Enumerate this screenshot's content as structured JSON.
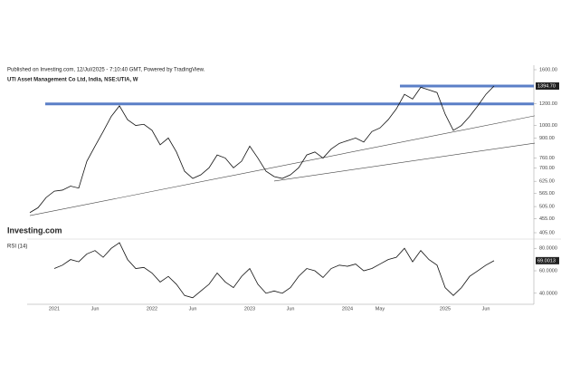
{
  "header": {
    "published": "Published on Investing.com, 12/Jul/2025 - 7:10:40 GMT, Powered by TradingView.",
    "symbol": "UTI Asset Management Co Ltd, India, NSE:UTIA, W"
  },
  "logo": "Investing.com",
  "chart_data": [
    {
      "type": "line",
      "log_scale": true,
      "categories": [
        null,
        null,
        null,
        "2021",
        null,
        null,
        null,
        null,
        "Jun",
        null,
        null,
        null,
        null,
        null,
        null,
        "2022",
        null,
        null,
        null,
        null,
        "Jun",
        null,
        null,
        null,
        null,
        null,
        null,
        "2023",
        null,
        null,
        null,
        null,
        "Jun",
        null,
        null,
        null,
        null,
        null,
        null,
        "2024",
        null,
        null,
        null,
        "May",
        null,
        null,
        null,
        null,
        null,
        null,
        null,
        "2025",
        null,
        null,
        null,
        null,
        "Jun",
        null
      ],
      "series": [
        {
          "color": "#111111",
          "values": [
            480,
            500,
            545,
            575,
            580,
            600,
            590,
            740,
            840,
            950,
            1080,
            1180,
            1050,
            1000,
            1010,
            960,
            850,
            900,
            800,
            680,
            640,
            660,
            700,
            780,
            760,
            700,
            740,
            840,
            760,
            680,
            650,
            640,
            660,
            700,
            780,
            800,
            760,
            820,
            860,
            880,
            900,
            870,
            950,
            980,
            1050,
            1150,
            1300,
            1250,
            1380,
            1350,
            1320,
            1100,
            960,
            1000,
            1080,
            1180,
            1300,
            1394.7
          ]
        }
      ],
      "last_value": {
        "value": 1394.7,
        "label": "1394.70"
      },
      "levels": [
        1394.7,
        1200
      ],
      "level_color": "#5b7fc7",
      "trendlines": [
        {
          "from": [
            0,
            468
          ],
          "to": [
            62,
            1085
          ]
        },
        {
          "from": [
            30,
            626
          ],
          "to": [
            62,
            862
          ]
        }
      ],
      "ylim": [
        405,
        1600
      ],
      "yticks": [
        {
          "value": 1600,
          "label": "1600.00"
        },
        {
          "value": 1200,
          "label": "1200.00"
        },
        {
          "value": 1000,
          "label": "1000.00"
        },
        {
          "value": 900,
          "label": "900.00"
        },
        {
          "value": 760,
          "label": "760.00"
        },
        {
          "value": 700,
          "label": "700.00"
        },
        {
          "value": 625,
          "label": "625.00"
        },
        {
          "value": 565,
          "label": "565.00"
        },
        {
          "value": 505,
          "label": "505.00"
        },
        {
          "value": 455,
          "label": "455.00"
        },
        {
          "value": 405,
          "label": "405.00"
        }
      ]
    },
    {
      "type": "line",
      "title": "RSI (14)",
      "series": [
        {
          "color": "#111111",
          "values": [
            null,
            null,
            null,
            62,
            65,
            70,
            68,
            75,
            78,
            72,
            80,
            85,
            70,
            62,
            63,
            58,
            50,
            55,
            48,
            38,
            36,
            42,
            48,
            58,
            50,
            45,
            55,
            62,
            48,
            40,
            42,
            40,
            45,
            55,
            62,
            60,
            54,
            62,
            65,
            64,
            66,
            60,
            62,
            66,
            70,
            72,
            80,
            68,
            78,
            70,
            65,
            45,
            38,
            45,
            55,
            60,
            65,
            69.0013
          ]
        }
      ],
      "last_value": {
        "value": 69.0013,
        "label": "69.0013"
      },
      "ylim": [
        31,
        85
      ],
      "yticks": [
        {
          "value": 80,
          "label": "80.0000"
        },
        {
          "value": 60,
          "label": "60.0000"
        },
        {
          "value": 40,
          "label": "40.0000"
        }
      ]
    }
  ]
}
